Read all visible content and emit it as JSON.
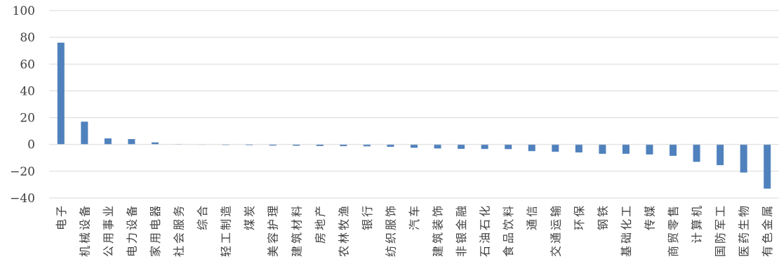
{
  "chart_data": {
    "type": "bar",
    "title": "",
    "xlabel": "",
    "ylabel": "",
    "ylim": [
      -40,
      100
    ],
    "yticks": [
      100,
      80,
      60,
      40,
      20,
      0,
      -20,
      -40
    ],
    "ytick_labels": [
      "100",
      "80",
      "60",
      "40",
      "20",
      "0",
      "−20",
      "−40"
    ],
    "grid": true,
    "legend": "none",
    "bar_color": "#4f81bd",
    "grid_color": "#d9d9d9",
    "categories": [
      "电子",
      "机械设备",
      "公用事业",
      "电力设备",
      "家用电器",
      "社会服务",
      "综合",
      "轻工制造",
      "煤炭",
      "美容护理",
      "建筑材料",
      "房地产",
      "农林牧渔",
      "银行",
      "纺织服饰",
      "汽车",
      "建筑装饰",
      "非银金融",
      "石油石化",
      "食品饮料",
      "通信",
      "交通运输",
      "环保",
      "钢铁",
      "基础化工",
      "传媒",
      "商贸零售",
      "计算机",
      "国防军工",
      "医药生物",
      "有色金属"
    ],
    "values": [
      76,
      17,
      4.5,
      4,
      1.5,
      0.3,
      0,
      -0.5,
      -0.6,
      -0.9,
      -1,
      -1.2,
      -1.3,
      -1.4,
      -1.8,
      -2.5,
      -3,
      -3.3,
      -3.4,
      -3.5,
      -5,
      -5.5,
      -6,
      -7,
      -7,
      -7.5,
      -8.5,
      -13,
      -15.5,
      -21,
      -33
    ]
  }
}
